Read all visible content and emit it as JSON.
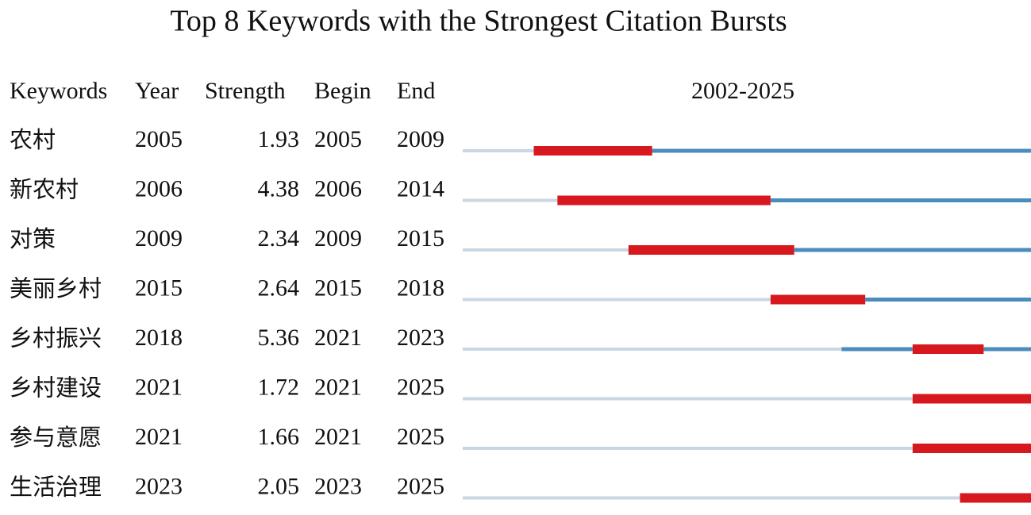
{
  "chart_data": {
    "type": "burst",
    "title": "Top 8 Keywords with the Strongest Citation Bursts",
    "columns": [
      "Keywords",
      "Year",
      "Strength",
      "Begin",
      "End"
    ],
    "period_label": "2002-2025",
    "xlim": [
      2002,
      2025
    ],
    "colors": {
      "before": "#c9d7e3",
      "active": "#4b8cbf",
      "burst": "#d7191f"
    },
    "rows": [
      {
        "keyword": "农村",
        "year": 2005,
        "strength": 1.93,
        "begin": 2005,
        "end": 2009
      },
      {
        "keyword": "新农村",
        "year": 2006,
        "strength": 4.38,
        "begin": 2006,
        "end": 2014
      },
      {
        "keyword": "对策",
        "year": 2009,
        "strength": 2.34,
        "begin": 2009,
        "end": 2015
      },
      {
        "keyword": "美丽乡村",
        "year": 2015,
        "strength": 2.64,
        "begin": 2015,
        "end": 2018
      },
      {
        "keyword": "乡村振兴",
        "year": 2018,
        "strength": 5.36,
        "begin": 2021,
        "end": 2023
      },
      {
        "keyword": "乡村建设",
        "year": 2021,
        "strength": 1.72,
        "begin": 2021,
        "end": 2025
      },
      {
        "keyword": "参与意愿",
        "year": 2021,
        "strength": 1.66,
        "begin": 2021,
        "end": 2025
      },
      {
        "keyword": "生活治理",
        "year": 2023,
        "strength": 2.05,
        "begin": 2023,
        "end": 2025
      }
    ]
  }
}
